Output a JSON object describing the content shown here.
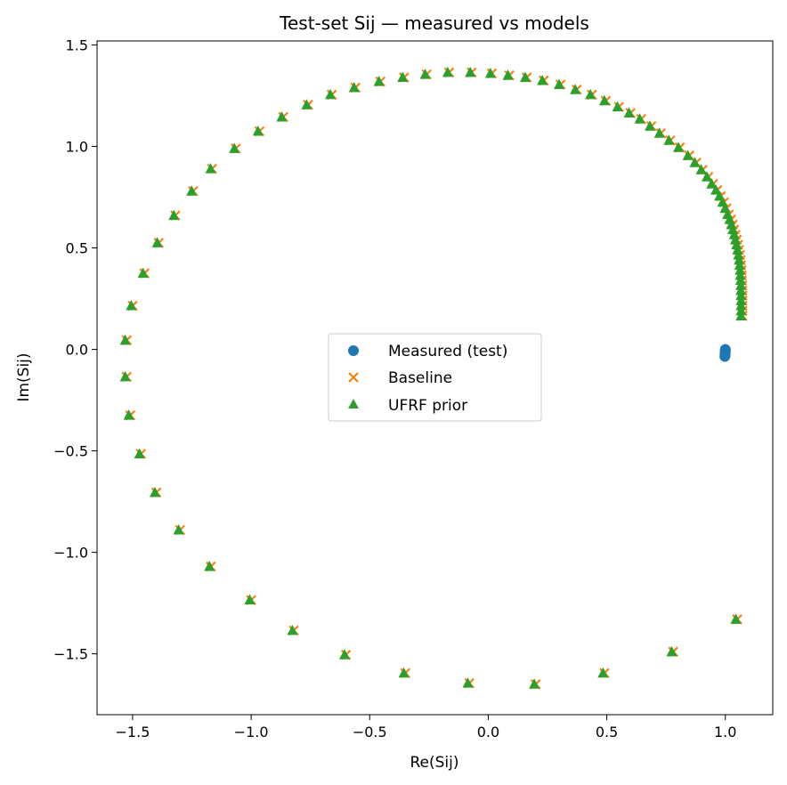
{
  "chart_data": {
    "type": "scatter",
    "title": "Test-set Sij — measured vs models",
    "xlabel": "Re(Sij)",
    "ylabel": "Im(Sij)",
    "xlim": [
      -1.65,
      1.2
    ],
    "ylim": [
      -1.8,
      1.52
    ],
    "xticks": [
      -1.5,
      -1.0,
      -0.5,
      0.0,
      0.5,
      1.0
    ],
    "yticks": [
      -1.5,
      -1.0,
      -0.5,
      0.0,
      0.5,
      1.0,
      1.5
    ],
    "xtick_labels": [
      "−1.5",
      "−1.0",
      "−0.5",
      "0.0",
      "0.5",
      "1.0"
    ],
    "ytick_labels": [
      "−1.5",
      "−1.0",
      "−0.5",
      "0.0",
      "0.5",
      "1.0",
      "1.5"
    ],
    "grid": false,
    "legend_position": "center",
    "colors": {
      "measured": "#1f77b4",
      "baseline": "#ff7f0e",
      "ufrf": "#2ca02c"
    },
    "series": [
      {
        "name": "Measured (test)",
        "marker": "circle",
        "x": [
          1.0,
          1.0,
          1.0,
          0.999,
          0.999,
          0.999,
          0.999,
          0.998
        ],
        "y": [
          0.0,
          -0.005,
          -0.01,
          -0.015,
          -0.02,
          -0.025,
          -0.03,
          -0.035
        ]
      },
      {
        "name": "Baseline",
        "marker": "x",
        "x": [
          1.072,
          1.072,
          1.072,
          1.072,
          1.072,
          1.071,
          1.071,
          1.07,
          1.069,
          1.068,
          1.066,
          1.064,
          1.061,
          1.057,
          1.053,
          1.048,
          1.043,
          1.037,
          1.031,
          1.024,
          1.015,
          1.005,
          0.994,
          0.981,
          0.966,
          0.948,
          0.928,
          0.904,
          0.877,
          0.848,
          0.808,
          0.768,
          0.728,
          0.688,
          0.645,
          0.6,
          0.551,
          0.496,
          0.437,
          0.373,
          0.305,
          0.234,
          0.162,
          0.089,
          0.015,
          -0.07,
          -0.165,
          -0.26,
          -0.355,
          -0.455,
          -0.56,
          -0.66,
          -0.76,
          -0.865,
          -0.965,
          -1.065,
          -1.165,
          -1.245,
          -1.32,
          -1.39,
          -1.45,
          -1.5,
          -1.525,
          -1.525,
          -1.51,
          -1.465,
          -1.4,
          -1.3,
          -1.17,
          -1.0,
          -0.82,
          -0.6,
          -0.35,
          -0.08,
          0.2,
          0.49,
          0.78,
          1.05
        ],
        "y": [
          0.165,
          0.19,
          0.215,
          0.24,
          0.265,
          0.29,
          0.315,
          0.34,
          0.365,
          0.39,
          0.415,
          0.44,
          0.465,
          0.49,
          0.515,
          0.54,
          0.565,
          0.59,
          0.615,
          0.64,
          0.665,
          0.695,
          0.725,
          0.755,
          0.785,
          0.815,
          0.85,
          0.885,
          0.92,
          0.955,
          0.995,
          1.03,
          1.065,
          1.1,
          1.135,
          1.165,
          1.195,
          1.225,
          1.255,
          1.28,
          1.305,
          1.325,
          1.34,
          1.35,
          1.36,
          1.365,
          1.365,
          1.355,
          1.34,
          1.32,
          1.29,
          1.255,
          1.205,
          1.145,
          1.075,
          0.99,
          0.89,
          0.78,
          0.66,
          0.525,
          0.375,
          0.215,
          0.045,
          -0.135,
          -0.325,
          -0.515,
          -0.705,
          -0.89,
          -1.07,
          -1.235,
          -1.385,
          -1.505,
          -1.595,
          -1.645,
          -1.65,
          -1.595,
          -1.49,
          -1.33
        ]
      },
      {
        "name": "UFRF prior",
        "marker": "triangle",
        "x": [
          1.066,
          1.066,
          1.066,
          1.066,
          1.066,
          1.065,
          1.065,
          1.064,
          1.063,
          1.062,
          1.06,
          1.058,
          1.055,
          1.051,
          1.047,
          1.042,
          1.037,
          1.031,
          1.025,
          1.018,
          1.009,
          0.999,
          0.988,
          0.975,
          0.96,
          0.942,
          0.922,
          0.898,
          0.871,
          0.842,
          0.802,
          0.762,
          0.722,
          0.682,
          0.639,
          0.594,
          0.545,
          0.49,
          0.431,
          0.367,
          0.299,
          0.228,
          0.156,
          0.083,
          0.009,
          -0.076,
          -0.171,
          -0.266,
          -0.361,
          -0.461,
          -0.566,
          -0.666,
          -0.766,
          -0.871,
          -0.971,
          -1.071,
          -1.171,
          -1.251,
          -1.326,
          -1.396,
          -1.456,
          -1.506,
          -1.531,
          -1.531,
          -1.516,
          -1.471,
          -1.406,
          -1.306,
          -1.176,
          -1.006,
          -0.826,
          -0.606,
          -0.356,
          -0.086,
          0.194,
          0.484,
          0.774,
          1.044
        ],
        "y": [
          0.165,
          0.19,
          0.215,
          0.24,
          0.265,
          0.29,
          0.315,
          0.34,
          0.365,
          0.39,
          0.415,
          0.44,
          0.465,
          0.49,
          0.515,
          0.54,
          0.565,
          0.59,
          0.615,
          0.64,
          0.665,
          0.695,
          0.725,
          0.755,
          0.785,
          0.815,
          0.85,
          0.885,
          0.92,
          0.955,
          0.995,
          1.03,
          1.065,
          1.1,
          1.135,
          1.165,
          1.195,
          1.225,
          1.255,
          1.28,
          1.305,
          1.325,
          1.34,
          1.35,
          1.36,
          1.365,
          1.365,
          1.355,
          1.34,
          1.32,
          1.29,
          1.255,
          1.205,
          1.145,
          1.075,
          0.99,
          0.89,
          0.78,
          0.66,
          0.525,
          0.375,
          0.215,
          0.045,
          -0.135,
          -0.325,
          -0.515,
          -0.705,
          -0.89,
          -1.07,
          -1.235,
          -1.385,
          -1.505,
          -1.595,
          -1.645,
          -1.65,
          -1.595,
          -1.49,
          -1.33
        ]
      }
    ]
  }
}
